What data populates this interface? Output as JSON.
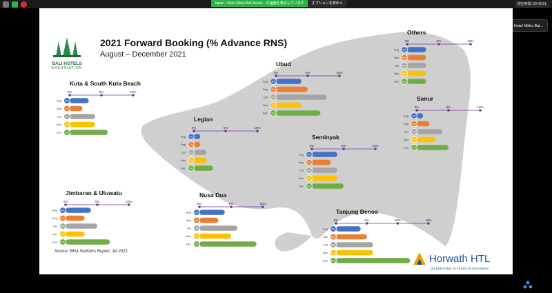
{
  "window": {
    "share_banner_text": "Japan - Hotel Nikko Bali Benoa... の画面を表示しています",
    "options_label": "オプションを表示 ▾",
    "timer_label": "現在時間: 00:45:51",
    "speaker_tag": "発表中: Japan - Hotel Nikko Bal..."
  },
  "slide": {
    "title": "2021 Forward Booking (% Advance RNS)",
    "subtitle": "August – December 2021",
    "logo_line1": "BALI HOTELS",
    "logo_line2": "ASSOCIATION",
    "source": "Source: BHA Statistics Report, Jul 2021",
    "horwath_name": "Horwath HTL",
    "horwath_tagline": "CELEBRATING 23 YEARS IN INDONESIA"
  },
  "colors": {
    "Aug": "#4472c4",
    "Sep": "#ed7d31",
    "Oct": "#a5a5a5",
    "Nov": "#ffc000",
    "Dec": "#70ad47",
    "axis": "#7030a0",
    "map": "#cfcfcf"
  },
  "chart_data": [
    {
      "type": "bar",
      "title": "Kuta & South Kuta Beach",
      "categories": [
        "Aug",
        "Sep",
        "Oct",
        "Nov",
        "Dec"
      ],
      "values": [
        3,
        2,
        4,
        4,
        6
      ],
      "badges": [
        "3%",
        "2%",
        "4%",
        "4%",
        "6%"
      ],
      "xticks": [
        "0%",
        "5%",
        "10%"
      ],
      "xlim": [
        0,
        10
      ]
    },
    {
      "type": "bar",
      "title": "Legian",
      "categories": [
        "Aug",
        "Sep",
        "Oct",
        "Nov",
        "Dec"
      ],
      "values": [
        1,
        1,
        2,
        2,
        3
      ],
      "badges": [
        "1%",
        "1%",
        "2%",
        "2%",
        "3%"
      ],
      "xticks": [
        "0%",
        "5%",
        "10%"
      ],
      "xlim": [
        0,
        10
      ]
    },
    {
      "type": "bar",
      "title": "Ubud",
      "categories": [
        "Aug",
        "Sep",
        "Oct",
        "Nov",
        "Dec"
      ],
      "values": [
        4,
        5,
        8,
        4,
        7
      ],
      "badges": [
        "4%",
        "5%",
        "8%",
        "4%",
        "7%"
      ],
      "xticks": [
        "0%",
        "5%",
        "10%"
      ],
      "xlim": [
        0,
        10
      ]
    },
    {
      "type": "bar",
      "title": "Others",
      "categories": [
        "Aug",
        "Sep",
        "Oct",
        "Nov",
        "Dec"
      ],
      "values": [
        3,
        3,
        3,
        3,
        3
      ],
      "badges": [
        "3%",
        "3%",
        "3%",
        "3%",
        "3%"
      ],
      "xticks": [
        "0%",
        "5%",
        "10%"
      ],
      "xlim": [
        0,
        10
      ]
    },
    {
      "type": "bar",
      "title": "Sanur",
      "categories": [
        "Aug",
        "Sep",
        "Oct",
        "Nov",
        "Dec"
      ],
      "values": [
        1,
        2,
        4,
        3,
        5
      ],
      "badges": [
        "1%",
        "2%",
        "4%",
        "3%",
        "5%"
      ],
      "xticks": [
        "0%",
        "5%",
        "10%"
      ],
      "xlim": [
        0,
        10
      ]
    },
    {
      "type": "bar",
      "title": "Seminyak",
      "categories": [
        "Aug",
        "Sep",
        "Oct",
        "Nov",
        "Dec"
      ],
      "values": [
        4,
        3,
        4,
        4,
        5
      ],
      "badges": [
        "4%",
        "3%",
        "4%",
        "4%",
        "5%"
      ],
      "xticks": [
        "0%",
        "5%",
        "10%"
      ],
      "xlim": [
        0,
        10
      ]
    },
    {
      "type": "bar",
      "title": "Jimbaran & Uluwatu",
      "categories": [
        "Aug",
        "Sep",
        "Oct",
        "Nov",
        "Dec"
      ],
      "values": [
        4,
        3,
        5,
        3,
        7
      ],
      "badges": [
        "4%",
        "3%",
        "5%",
        "3%",
        "7%"
      ],
      "xticks": [
        "0%",
        "5%",
        "10%"
      ],
      "xlim": [
        0,
        10
      ]
    },
    {
      "type": "bar",
      "title": "Nusa Dua",
      "categories": [
        "Aug",
        "Sep",
        "Oct",
        "Nov",
        "Dec"
      ],
      "values": [
        4,
        3,
        6,
        5,
        9
      ],
      "badges": [
        "4%",
        "3%",
        "6%",
        "5%",
        "9%"
      ],
      "xticks": [
        "0%",
        "5%",
        "10%"
      ],
      "xlim": [
        0,
        10
      ]
    },
    {
      "type": "bar",
      "title": "Tanjung Benoa",
      "categories": [
        "Aug",
        "Sep",
        "Oct",
        "Nov",
        "Dec"
      ],
      "values": [
        4,
        5,
        6,
        6,
        12
      ],
      "badges": [
        "4%",
        "5%",
        "6%",
        "6%",
        "12%"
      ],
      "xticks": [
        "0%",
        "5%",
        "10%",
        "15%"
      ],
      "xlim": [
        0,
        15
      ]
    }
  ]
}
